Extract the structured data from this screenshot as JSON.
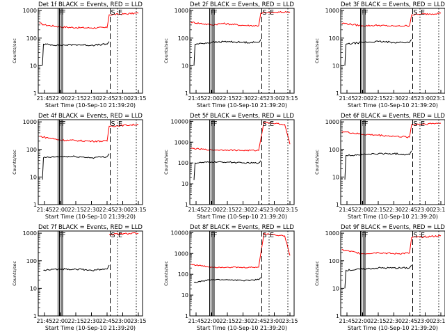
{
  "chart_data": [
    {
      "type": "line",
      "title": "Det 1f BLACK = Events, RED = LLD",
      "ylabel": "Counts/sec",
      "xlabel": "Start Time (10-Sep-10 21:39:20)",
      "x_ticks": [
        "21:45",
        "22:00",
        "22:15",
        "22:30",
        "22:45",
        "23:00",
        "23:15"
      ],
      "y_ticks": [
        "1",
        "10",
        "100",
        "1000"
      ],
      "ylim": [
        1,
        1200
      ],
      "log_y": true,
      "series": [
        {
          "color": "#ff0000",
          "values": [
            {
              "x": "21:40",
              "y": 350
            },
            {
              "x": "21:45",
              "y": 300
            },
            {
              "x": "22:00",
              "y": 255
            },
            {
              "x": "22:15",
              "y": 240
            },
            {
              "x": "22:30",
              "y": 235
            },
            {
              "x": "22:45",
              "y": 240
            },
            {
              "x": "22:47",
              "y": 700
            },
            {
              "x": "23:15",
              "y": 800
            }
          ]
        },
        {
          "color": "#000000",
          "values": [
            {
              "x": "21:43",
              "y": 10
            },
            {
              "x": "21:44",
              "y": 60
            },
            {
              "x": "22:00",
              "y": 55
            },
            {
              "x": "22:15",
              "y": 58
            },
            {
              "x": "22:30",
              "y": 55
            },
            {
              "x": "22:45",
              "y": 60
            },
            {
              "x": "22:47",
              "y": 75
            }
          ]
        }
      ],
      "flags": [
        "F",
        "F",
        "S",
        "E"
      ]
    },
    {
      "type": "line",
      "title": "Det 2f BLACK = Events, RED = LLD",
      "ylabel": "Counts/sec",
      "xlabel": "Start Time (10-Sep-10 21:39:20)",
      "x_ticks": [
        "21:45",
        "22:00",
        "22:15",
        "22:30",
        "22:45",
        "23:00",
        "23:15"
      ],
      "y_ticks": [
        "1",
        "10",
        "100",
        "1000"
      ],
      "ylim": [
        1,
        1200
      ],
      "log_y": true,
      "series": [
        {
          "color": "#ff0000",
          "values": [
            {
              "x": "21:40",
              "y": 380
            },
            {
              "x": "22:00",
              "y": 300
            },
            {
              "x": "22:10",
              "y": 340
            },
            {
              "x": "22:30",
              "y": 290
            },
            {
              "x": "22:45",
              "y": 280
            },
            {
              "x": "22:47",
              "y": 800
            },
            {
              "x": "23:15",
              "y": 900
            }
          ]
        },
        {
          "color": "#000000",
          "values": [
            {
              "x": "21:43",
              "y": 10
            },
            {
              "x": "21:44",
              "y": 60
            },
            {
              "x": "22:00",
              "y": 70
            },
            {
              "x": "22:15",
              "y": 75
            },
            {
              "x": "22:30",
              "y": 70
            },
            {
              "x": "22:45",
              "y": 70
            },
            {
              "x": "22:47",
              "y": 90
            }
          ]
        }
      ],
      "flags": [
        "F",
        "F",
        "S",
        "E"
      ]
    },
    {
      "type": "line",
      "title": "Det 3f BLACK = Events, RED = LLD",
      "ylabel": "Counts/sec",
      "xlabel": "Start Time (10-Sep-10 21:39:20)",
      "x_ticks": [
        "21:45",
        "22:00",
        "22:15",
        "22:30",
        "22:45",
        "23:00",
        "23:15"
      ],
      "y_ticks": [
        "1",
        "10",
        "100",
        "1000"
      ],
      "ylim": [
        1,
        1200
      ],
      "log_y": true,
      "series": [
        {
          "color": "#ff0000",
          "values": [
            {
              "x": "21:40",
              "y": 350
            },
            {
              "x": "22:00",
              "y": 280
            },
            {
              "x": "22:15",
              "y": 290
            },
            {
              "x": "22:30",
              "y": 270
            },
            {
              "x": "22:45",
              "y": 280
            },
            {
              "x": "22:47",
              "y": 700
            },
            {
              "x": "23:15",
              "y": 800
            }
          ]
        },
        {
          "color": "#000000",
          "values": [
            {
              "x": "21:43",
              "y": 10
            },
            {
              "x": "21:44",
              "y": 60
            },
            {
              "x": "22:00",
              "y": 70
            },
            {
              "x": "22:15",
              "y": 75
            },
            {
              "x": "22:30",
              "y": 70
            },
            {
              "x": "22:45",
              "y": 70
            },
            {
              "x": "22:47",
              "y": 90
            }
          ]
        }
      ],
      "flags": [
        "F",
        "F",
        "S",
        "E"
      ]
    },
    {
      "type": "line",
      "title": "Det 4f BLACK = Events, RED = LLD",
      "ylabel": "Counts/sec",
      "xlabel": "Start Time (10-Sep-10 21:39:20)",
      "x_ticks": [
        "21:45",
        "22:00",
        "22:15",
        "22:30",
        "22:45",
        "23:00",
        "23:15"
      ],
      "y_ticks": [
        "1",
        "10",
        "100",
        "1000"
      ],
      "ylim": [
        1,
        1200
      ],
      "log_y": true,
      "series": [
        {
          "color": "#ff0000",
          "values": [
            {
              "x": "21:40",
              "y": 300
            },
            {
              "x": "22:00",
              "y": 220
            },
            {
              "x": "22:15",
              "y": 210
            },
            {
              "x": "22:30",
              "y": 200
            },
            {
              "x": "22:45",
              "y": 200
            },
            {
              "x": "22:47",
              "y": 700
            },
            {
              "x": "23:15",
              "y": 800
            }
          ]
        },
        {
          "color": "#000000",
          "values": [
            {
              "x": "21:43",
              "y": 8
            },
            {
              "x": "21:44",
              "y": 50
            },
            {
              "x": "22:00",
              "y": 55
            },
            {
              "x": "22:15",
              "y": 55
            },
            {
              "x": "22:30",
              "y": 50
            },
            {
              "x": "22:45",
              "y": 55
            },
            {
              "x": "22:47",
              "y": 70
            }
          ]
        }
      ],
      "flags": [
        "F",
        "F",
        "S",
        "E"
      ]
    },
    {
      "type": "line",
      "title": "Det 5f BLACK = Events, RED = LLD",
      "ylabel": "Counts/sec",
      "xlabel": "Start Time (10-Sep-10 21:39:20)",
      "x_ticks": [
        "21:45",
        "22:00",
        "22:15",
        "22:30",
        "22:45",
        "23:00",
        "23:15"
      ],
      "y_ticks": [
        "1",
        "10",
        "100",
        "1000",
        "10000"
      ],
      "ylim": [
        1,
        12000
      ],
      "log_y": true,
      "series": [
        {
          "color": "#ff0000",
          "values": [
            {
              "x": "21:40",
              "y": 500
            },
            {
              "x": "22:00",
              "y": 420
            },
            {
              "x": "22:15",
              "y": 420
            },
            {
              "x": "22:30",
              "y": 400
            },
            {
              "x": "22:45",
              "y": 400
            },
            {
              "x": "22:50",
              "y": 9000
            },
            {
              "x": "23:10",
              "y": 7000
            },
            {
              "x": "23:15",
              "y": 800
            }
          ]
        },
        {
          "color": "#000000",
          "values": [
            {
              "x": "21:43",
              "y": 15
            },
            {
              "x": "21:44",
              "y": 100
            },
            {
              "x": "22:00",
              "y": 110
            },
            {
              "x": "22:15",
              "y": 110
            },
            {
              "x": "22:30",
              "y": 100
            },
            {
              "x": "22:45",
              "y": 100
            },
            {
              "x": "22:47",
              "y": 130
            }
          ]
        }
      ],
      "flags": [
        "F",
        "F",
        "S",
        "E"
      ]
    },
    {
      "type": "line",
      "title": "Det 6f BLACK = Events, RED = LLD",
      "ylabel": "Counts/sec",
      "xlabel": "Start Time (10-Sep-10 21:39:20)",
      "x_ticks": [
        "21:45",
        "22:00",
        "22:15",
        "22:30",
        "22:45",
        "23:00",
        "23:15"
      ],
      "y_ticks": [
        "1",
        "10",
        "100",
        "1000"
      ],
      "ylim": [
        1,
        1200
      ],
      "log_y": true,
      "series": [
        {
          "color": "#ff0000",
          "values": [
            {
              "x": "21:40",
              "y": 450
            },
            {
              "x": "22:00",
              "y": 350
            },
            {
              "x": "22:15",
              "y": 330
            },
            {
              "x": "22:30",
              "y": 300
            },
            {
              "x": "22:45",
              "y": 280
            },
            {
              "x": "22:47",
              "y": 800
            },
            {
              "x": "23:15",
              "y": 900
            }
          ]
        },
        {
          "color": "#000000",
          "values": [
            {
              "x": "21:43",
              "y": 8
            },
            {
              "x": "21:44",
              "y": 60
            },
            {
              "x": "22:00",
              "y": 65
            },
            {
              "x": "22:15",
              "y": 70
            },
            {
              "x": "22:30",
              "y": 70
            },
            {
              "x": "22:45",
              "y": 65
            },
            {
              "x": "22:47",
              "y": 90
            }
          ]
        }
      ],
      "flags": [
        "F",
        "F",
        "S",
        "E"
      ]
    },
    {
      "type": "line",
      "title": "Det 7f BLACK = Events, RED = LLD",
      "ylabel": "Counts/sec",
      "xlabel": "Start Time (10-Sep-10 21:39:20)",
      "x_ticks": [
        "21:45",
        "22:00",
        "22:15",
        "22:30",
        "22:45",
        "23:00",
        "23:15"
      ],
      "y_ticks": [
        "1",
        "10",
        "100",
        "1000"
      ],
      "ylim": [
        1,
        1200
      ],
      "log_y": true,
      "series": [
        {
          "color": "#ff0000",
          "values": [
            {
              "x": "22:47",
              "y": 900
            },
            {
              "x": "23:15",
              "y": 1000
            }
          ]
        },
        {
          "color": "#000000",
          "values": [
            {
              "x": "21:44",
              "y": 45
            },
            {
              "x": "22:00",
              "y": 50
            },
            {
              "x": "22:15",
              "y": 50
            },
            {
              "x": "22:30",
              "y": 45
            },
            {
              "x": "22:45",
              "y": 50
            },
            {
              "x": "22:47",
              "y": 70
            }
          ]
        }
      ],
      "flags": [
        "F",
        "F",
        "S",
        "E"
      ]
    },
    {
      "type": "line",
      "title": "Det 8f BLACK = Events, RED = LLD",
      "ylabel": "Counts/sec",
      "xlabel": "Start Time (10-Sep-10 21:39:20)",
      "x_ticks": [
        "21:45",
        "22:00",
        "22:15",
        "22:30",
        "22:45",
        "23:00",
        "23:15"
      ],
      "y_ticks": [
        "1",
        "10",
        "100",
        "1000",
        "10000"
      ],
      "ylim": [
        1,
        12000
      ],
      "log_y": true,
      "series": [
        {
          "color": "#ff0000",
          "values": [
            {
              "x": "21:40",
              "y": 300
            },
            {
              "x": "22:00",
              "y": 220
            },
            {
              "x": "22:15",
              "y": 220
            },
            {
              "x": "22:30",
              "y": 210
            },
            {
              "x": "22:45",
              "y": 220
            },
            {
              "x": "22:50",
              "y": 9000
            },
            {
              "x": "23:10",
              "y": 7000
            },
            {
              "x": "23:15",
              "y": 800
            }
          ]
        },
        {
          "color": "#000000",
          "values": [
            {
              "x": "21:43",
              "y": 40
            },
            {
              "x": "22:00",
              "y": 55
            },
            {
              "x": "22:15",
              "y": 55
            },
            {
              "x": "22:30",
              "y": 50
            },
            {
              "x": "22:45",
              "y": 55
            },
            {
              "x": "22:47",
              "y": 70
            }
          ]
        }
      ],
      "flags": [
        "F",
        "F",
        "S",
        "E"
      ]
    },
    {
      "type": "line",
      "title": "Det 9f BLACK = Events, RED = LLD",
      "ylabel": "Counts/sec",
      "xlabel": "Start Time (10-Sep-10 21:39:20)",
      "x_ticks": [
        "21:45",
        "22:00",
        "22:15",
        "22:30",
        "22:45",
        "23:00",
        "23:15"
      ],
      "y_ticks": [
        "1",
        "10",
        "100",
        "1000"
      ],
      "ylim": [
        1,
        1200
      ],
      "log_y": true,
      "series": [
        {
          "color": "#ff0000",
          "values": [
            {
              "x": "21:40",
              "y": 250
            },
            {
              "x": "22:00",
              "y": 180
            },
            {
              "x": "22:15",
              "y": 200
            },
            {
              "x": "22:30",
              "y": 180
            },
            {
              "x": "22:45",
              "y": 190
            },
            {
              "x": "22:47",
              "y": 700
            },
            {
              "x": "23:15",
              "y": 800
            }
          ]
        },
        {
          "color": "#000000",
          "values": [
            {
              "x": "21:43",
              "y": 10
            },
            {
              "x": "21:44",
              "y": 45
            },
            {
              "x": "22:00",
              "y": 50
            },
            {
              "x": "22:15",
              "y": 55
            },
            {
              "x": "22:30",
              "y": 55
            },
            {
              "x": "22:45",
              "y": 55
            },
            {
              "x": "22:47",
              "y": 70
            }
          ]
        }
      ],
      "flags": [
        "F",
        "F",
        "S",
        "E"
      ]
    }
  ]
}
